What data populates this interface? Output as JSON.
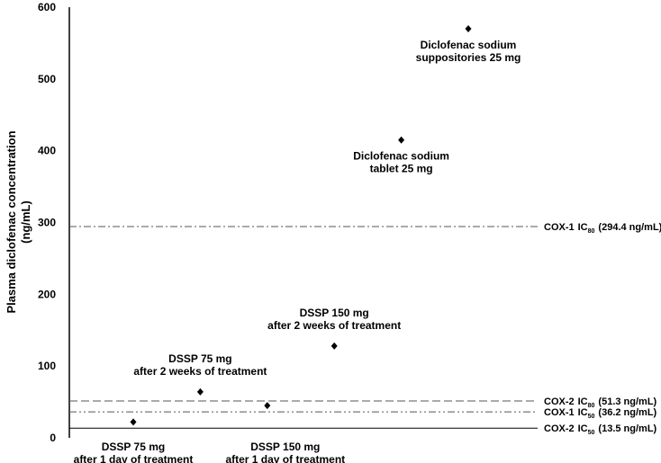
{
  "chart_data": {
    "type": "scatter",
    "title": "",
    "xlabel": "",
    "ylabel": "Plasma diclofenac concentration (ng/mL)",
    "ylabel_lines": [
      "Plasma diclofenac concentration",
      "(ng/mL)"
    ],
    "ylim": [
      0,
      600
    ],
    "yticks": [
      "0",
      "100",
      "200",
      "300",
      "400",
      "500",
      "600"
    ],
    "grid": false,
    "points": [
      {
        "label": [
          "DSSP 75 mg",
          "after 1 day of treatment"
        ],
        "y": 22,
        "label_pos": "below"
      },
      {
        "label": [
          "DSSP 75 mg",
          "after 2 weeks of treatment"
        ],
        "y": 64,
        "label_pos": "above"
      },
      {
        "label": [
          "DSSP 150 mg",
          "after 1 day of treatment"
        ],
        "y": 45,
        "label_pos": "below"
      },
      {
        "label": [
          "DSSP 150 mg",
          "after 2 weeks of treatment"
        ],
        "y": 128,
        "label_pos": "above"
      },
      {
        "label": [
          "Diclofenac sodium",
          "tablet 25 mg"
        ],
        "y": 415,
        "label_pos": "below"
      },
      {
        "label": [
          "Diclofenac sodium",
          "suppositories 25 mg"
        ],
        "y": 570,
        "label_pos": "below"
      }
    ],
    "reference_lines": [
      {
        "y": 294.4,
        "name": "COX-1",
        "sub": "80",
        "value": "(294.4 ng/mL)",
        "style": "dash-dot"
      },
      {
        "y": 51.3,
        "name": "COX-2",
        "sub": "80",
        "value": "(51.3 ng/mL)",
        "style": "dashed"
      },
      {
        "y": 36.2,
        "name": "COX-1",
        "sub": "50",
        "value": "(36.2 ng/mL)",
        "style": "dash-dot-dot"
      },
      {
        "y": 13.5,
        "name": "COX-2",
        "sub": "50",
        "value": "(13.5 ng/mL)",
        "style": "solid"
      }
    ],
    "ic_prefix": "IC",
    "marker": "diamond",
    "colors": {
      "marker": "#000000",
      "axis": "#000000",
      "ref_line": "#555555"
    }
  }
}
